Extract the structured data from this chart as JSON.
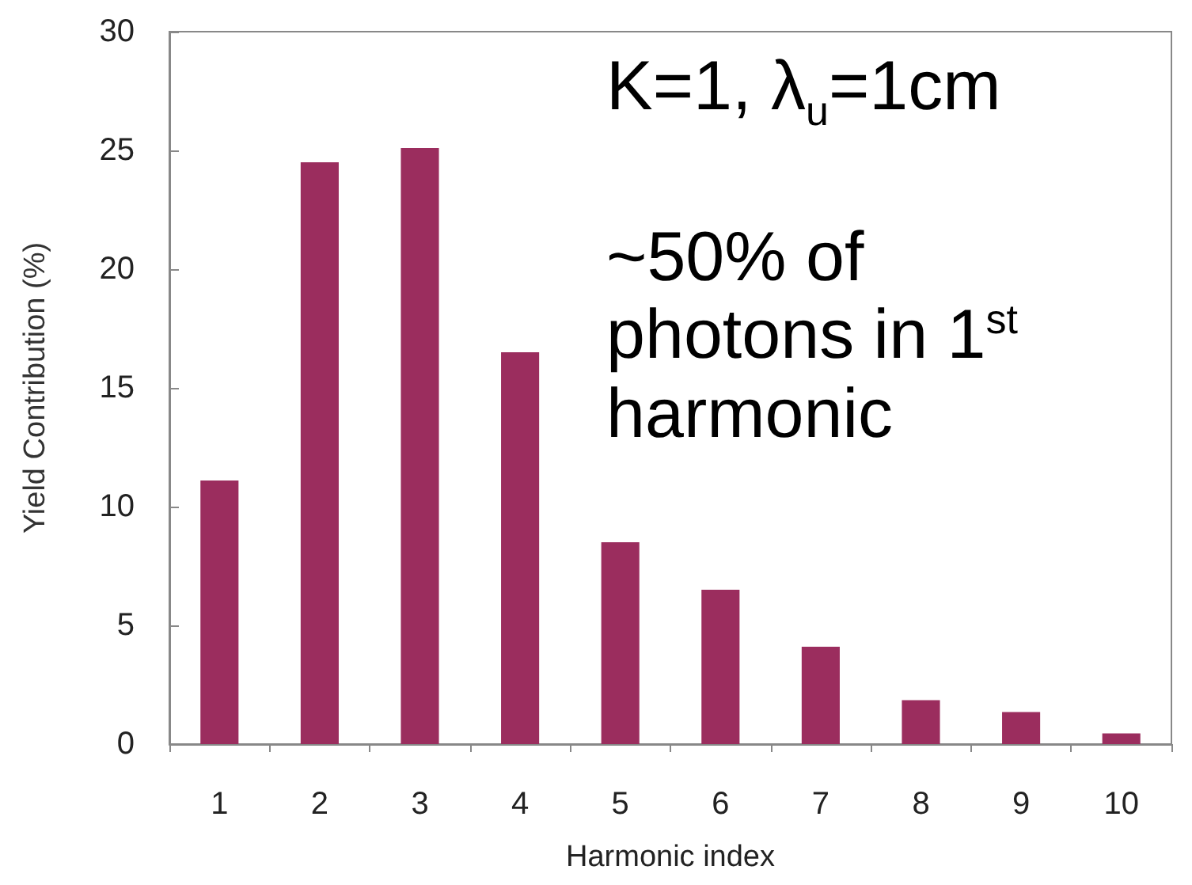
{
  "chart_data": {
    "type": "bar",
    "xlabel": "Harmonic index",
    "ylabel": "Yield Contribution (%)",
    "categories": [
      "1",
      "2",
      "3",
      "4",
      "5",
      "6",
      "7",
      "8",
      "9",
      "10"
    ],
    "values": [
      11.1,
      24.5,
      25.1,
      16.5,
      8.5,
      6.5,
      4.1,
      1.85,
      1.35,
      0.45
    ],
    "color": "#9b2d5e",
    "ylim": [
      0,
      30
    ],
    "yticks": [
      0,
      5,
      10,
      15,
      20,
      25,
      30
    ],
    "grid": false,
    "annotations": [
      "K=1, λ$_{u}$=1cm",
      "~50% of photons in 1$^{st}$ harmonic"
    ]
  }
}
